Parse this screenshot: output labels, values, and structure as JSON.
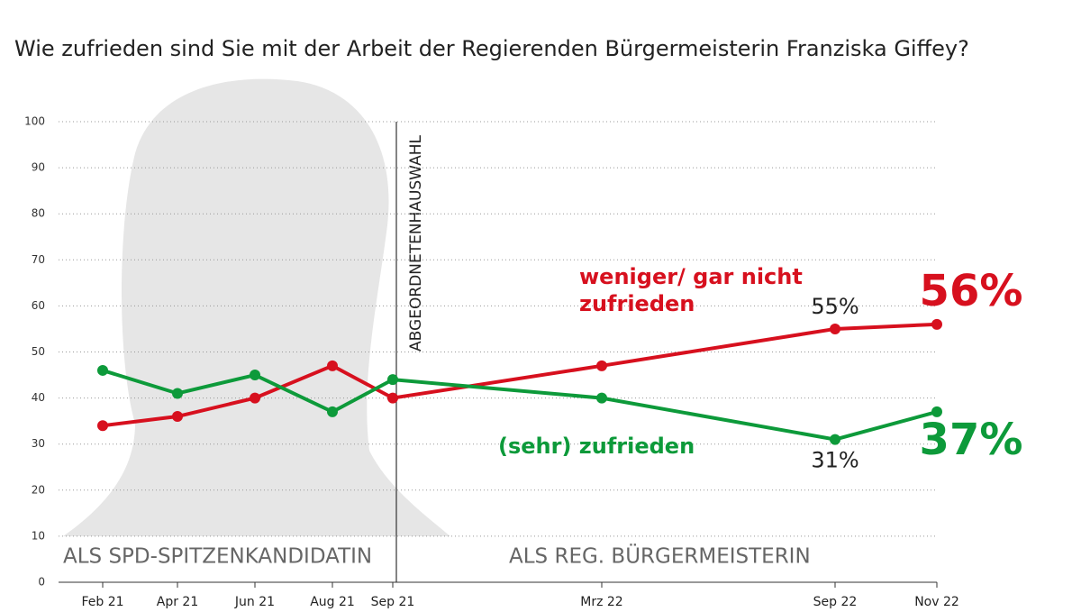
{
  "chart_data": {
    "type": "line",
    "title": "Wie zufrieden sind Sie mit der Arbeit der Regierenden Bürgermeisterin Franziska Giffey?",
    "categories": [
      "Feb 21",
      "Apr 21",
      "Jun 21",
      "Aug 21",
      "Sep 21",
      "Mrz 22",
      "Sep 22",
      "Nov 22"
    ],
    "series": [
      {
        "name": "weniger/ gar nicht zufrieden",
        "color": "#d7101e",
        "values": [
          34,
          36,
          40,
          47,
          40,
          47,
          55,
          56
        ],
        "value_labels": [
          null,
          null,
          null,
          null,
          null,
          null,
          "55%",
          "56%"
        ]
      },
      {
        "name": "(sehr) zufrieden",
        "color": "#0d9a3a",
        "values": [
          46,
          41,
          45,
          37,
          44,
          40,
          31,
          37
        ],
        "value_labels": [
          null,
          null,
          null,
          null,
          null,
          null,
          "31%",
          "37%"
        ]
      }
    ],
    "ylim": [
      0,
      100
    ],
    "yticks": [
      0,
      10,
      20,
      30,
      40,
      50,
      60,
      70,
      80,
      90,
      100
    ],
    "grid": true,
    "annotations": [
      "ABGEORDNETENHAUSWAHL",
      "ALS SPD-SPITZENKANDIDATIN",
      "ALS REG. BÜRGERMEISTERIN"
    ]
  }
}
